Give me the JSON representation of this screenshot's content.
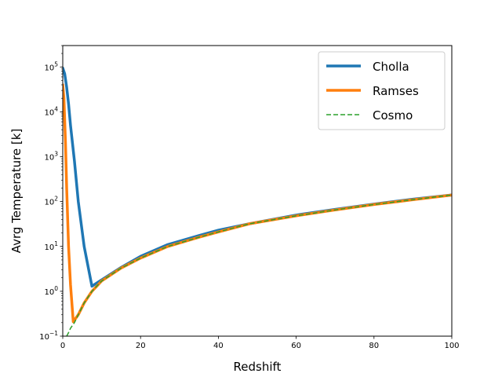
{
  "chart_data": {
    "type": "line",
    "title": "",
    "xlabel": "Redshift",
    "ylabel": "Avrg Temperature [k]",
    "xlim": [
      0,
      100
    ],
    "ylim": [
      0.1,
      300000
    ],
    "yscale": "log",
    "grid": false,
    "legend_position": "top-right",
    "xticks": [
      0,
      20,
      40,
      60,
      80,
      100
    ],
    "xtick_labels": [
      "0",
      "20",
      "40",
      "60",
      "80",
      "100"
    ],
    "yticks": [
      0.1,
      1,
      10,
      100,
      1000,
      10000,
      100000
    ],
    "ytick_labels": [
      {
        "base": "10",
        "exp": "−1"
      },
      {
        "base": "10",
        "exp": "0"
      },
      {
        "base": "10",
        "exp": "1"
      },
      {
        "base": "10",
        "exp": "2"
      },
      {
        "base": "10",
        "exp": "3"
      },
      {
        "base": "10",
        "exp": "4"
      },
      {
        "base": "10",
        "exp": "5"
      }
    ],
    "series": [
      {
        "name": "Cholla",
        "color": "#1f77b4",
        "style": "solid",
        "x": [
          0,
          0.5,
          1,
          1.5,
          2,
          3,
          4,
          5.5,
          7.5,
          10,
          15,
          20,
          27,
          35,
          40,
          48,
          60,
          70,
          80,
          90,
          100
        ],
        "y": [
          95000,
          70000,
          35000,
          15000,
          5000,
          800,
          100,
          10,
          1.3,
          1.8,
          3.4,
          6,
          11,
          17.5,
          23,
          32,
          50,
          67,
          88,
          113,
          140
        ]
      },
      {
        "name": "Ramses",
        "color": "#ff7f0e",
        "style": "solid",
        "x": [
          0,
          0.3,
          0.7,
          1,
          1.5,
          2,
          2.7,
          4,
          5.5,
          7.5,
          10,
          15,
          20,
          27,
          35,
          40,
          48,
          60,
          70,
          80,
          90,
          100
        ],
        "y": [
          40000,
          20000,
          2000,
          200,
          10,
          1.4,
          0.21,
          0.3,
          0.55,
          1.0,
          1.7,
          3.3,
          5.5,
          10,
          16,
          21,
          32,
          48,
          65,
          86,
          110,
          140
        ]
      },
      {
        "name": "Cosmo",
        "color": "#2ca02c",
        "style": "dashed",
        "x": [
          1,
          1.5,
          2,
          3,
          4,
          5.5,
          7.5,
          10,
          15,
          20,
          27,
          35,
          40,
          48,
          60,
          70,
          80,
          90,
          100
        ],
        "y": [
          0.1,
          0.12,
          0.15,
          0.2,
          0.3,
          0.55,
          1.0,
          1.7,
          3.3,
          5.5,
          10,
          16,
          21,
          32,
          48,
          65,
          86,
          110,
          140
        ]
      }
    ]
  }
}
